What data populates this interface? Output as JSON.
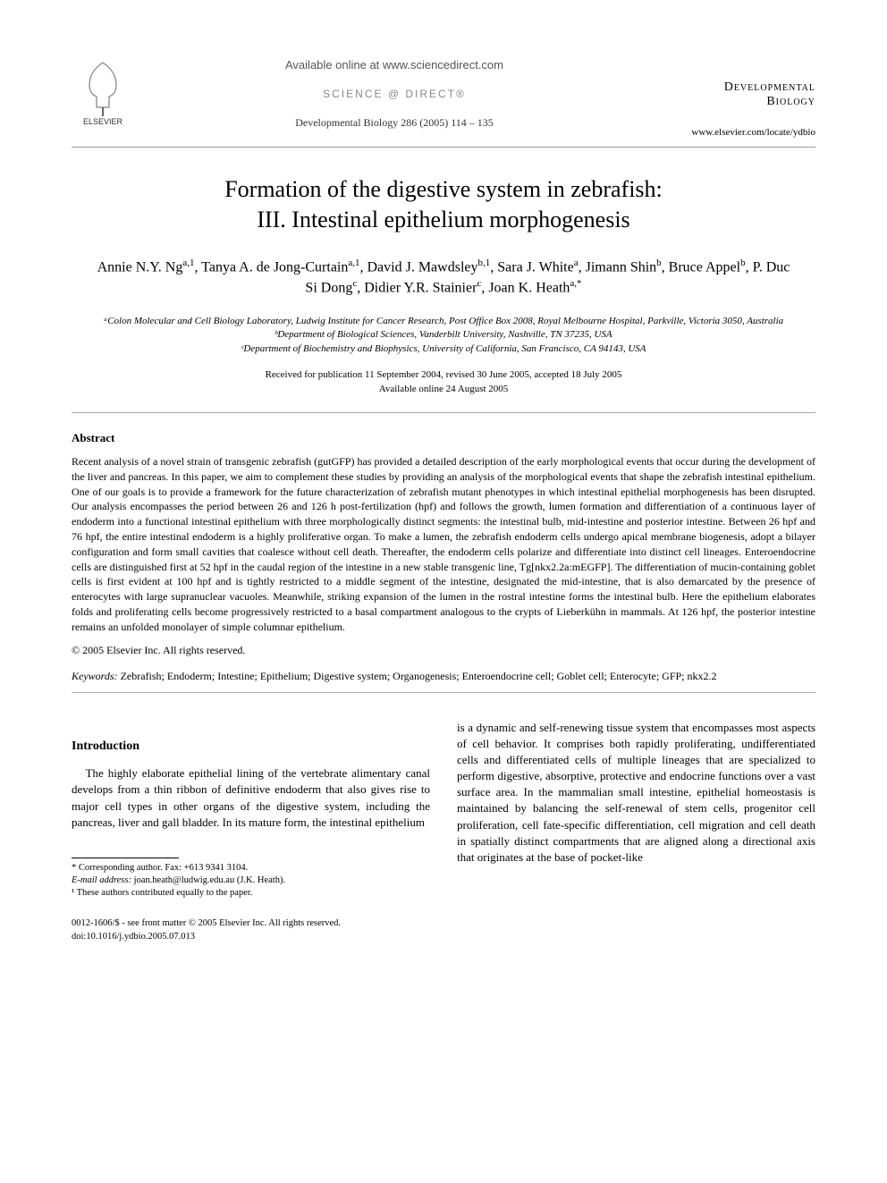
{
  "header": {
    "available_online": "Available online at www.sciencedirect.com",
    "science_direct": "SCIENCE @ DIRECT®",
    "journal_ref": "Developmental Biology 286 (2005) 114 – 135",
    "journal_name_line1": "Developmental",
    "journal_name_line2": "Biology",
    "journal_url": "www.elsevier.com/locate/ydbio",
    "elsevier_label": "ELSEVIER"
  },
  "title_line1": "Formation of the digestive system in zebrafish:",
  "title_line2": "III. Intestinal epithelium morphogenesis",
  "authors_html": "Annie N.Y. Ng<sup>a,1</sup>, Tanya A. de Jong-Curtain<sup>a,1</sup>, David J. Mawdsley<sup>b,1</sup>, Sara J. White<sup>a</sup>, Jimann Shin<sup>b</sup>, Bruce Appel<sup>b</sup>, P. Duc Si Dong<sup>c</sup>, Didier Y.R. Stainier<sup>c</sup>, Joan K. Heath<sup>a,*</sup>",
  "affiliations": {
    "a": "ᵃColon Molecular and Cell Biology Laboratory, Ludwig Institute for Cancer Research, Post Office Box 2008, Royal Melbourne Hospital, Parkville, Victoria 3050, Australia",
    "b": "ᵇDepartment of Biological Sciences, Vanderbilt University, Nashville, TN 37235, USA",
    "c": "ᶜDepartment of Biochemistry and Biophysics, University of California, San Francisco, CA 94143, USA"
  },
  "dates": {
    "received": "Received for publication 11 September 2004, revised 30 June 2005, accepted 18 July 2005",
    "online": "Available online 24 August 2005"
  },
  "abstract_heading": "Abstract",
  "abstract_text": "Recent analysis of a novel strain of transgenic zebrafish (gutGFP) has provided a detailed description of the early morphological events that occur during the development of the liver and pancreas. In this paper, we aim to complement these studies by providing an analysis of the morphological events that shape the zebrafish intestinal epithelium. One of our goals is to provide a framework for the future characterization of zebrafish mutant phenotypes in which intestinal epithelial morphogenesis has been disrupted. Our analysis encompasses the period between 26 and 126 h post-fertilization (hpf) and follows the growth, lumen formation and differentiation of a continuous layer of endoderm into a functional intestinal epithelium with three morphologically distinct segments: the intestinal bulb, mid-intestine and posterior intestine. Between 26 hpf and 76 hpf, the entire intestinal endoderm is a highly proliferative organ. To make a lumen, the zebrafish endoderm cells undergo apical membrane biogenesis, adopt a bilayer configuration and form small cavities that coalesce without cell death. Thereafter, the endoderm cells polarize and differentiate into distinct cell lineages. Enteroendocrine cells are distinguished first at 52 hpf in the caudal region of the intestine in a new stable transgenic line, Tg[nkx2.2a:mEGFP]. The differentiation of mucin-containing goblet cells is first evident at 100 hpf and is tightly restricted to a middle segment of the intestine, designated the mid-intestine, that is also demarcated by the presence of enterocytes with large supranuclear vacuoles. Meanwhile, striking expansion of the lumen in the rostral intestine forms the intestinal bulb. Here the epithelium elaborates folds and proliferating cells become progressively restricted to a basal compartment analogous to the crypts of Lieberkühn in mammals. At 126 hpf, the posterior intestine remains an unfolded monolayer of simple columnar epithelium.",
  "copyright": "© 2005 Elsevier Inc. All rights reserved.",
  "keywords_label": "Keywords:",
  "keywords_text": " Zebrafish; Endoderm; Intestine; Epithelium; Digestive system; Organogenesis; Enteroendocrine cell; Goblet cell; Enterocyte; GFP; nkx2.2",
  "intro_heading": "Introduction",
  "intro_col1": "The highly elaborate epithelial lining of the vertebrate alimentary canal develops from a thin ribbon of definitive endoderm that also gives rise to major cell types in other organs of the digestive system, including the pancreas, liver and gall bladder. In its mature form, the intestinal epithelium",
  "intro_col2": "is a dynamic and self-renewing tissue system that encompasses most aspects of cell behavior. It comprises both rapidly proliferating, undifferentiated cells and differentiated cells of multiple lineages that are specialized to perform digestive, absorptive, protective and endocrine functions over a vast surface area. In the mammalian small intestine, epithelial homeostasis is maintained by balancing the self-renewal of stem cells, progenitor cell proliferation, cell fate-specific differentiation, cell migration and cell death in spatially distinct compartments that are aligned along a directional axis that originates at the base of pocket-like",
  "footnotes": {
    "corresponding": "* Corresponding author. Fax: +613 9341 3104.",
    "email_label": "E-mail address:",
    "email": " joan.heath@ludwig.edu.au (J.K. Heath).",
    "equal": "¹ These authors contributed equally to the paper."
  },
  "footer": {
    "line1": "0012-1606/$ - see front matter © 2005 Elsevier Inc. All rights reserved.",
    "line2": "doi:10.1016/j.ydbio.2005.07.013"
  },
  "colors": {
    "text": "#000000",
    "muted": "#888888",
    "rule": "#999999",
    "background": "#ffffff"
  },
  "typography": {
    "body_family": "Times New Roman",
    "title_size_pt": 20,
    "authors_size_pt": 12,
    "affil_size_pt": 8,
    "abstract_size_pt": 9,
    "body_size_pt": 10
  }
}
